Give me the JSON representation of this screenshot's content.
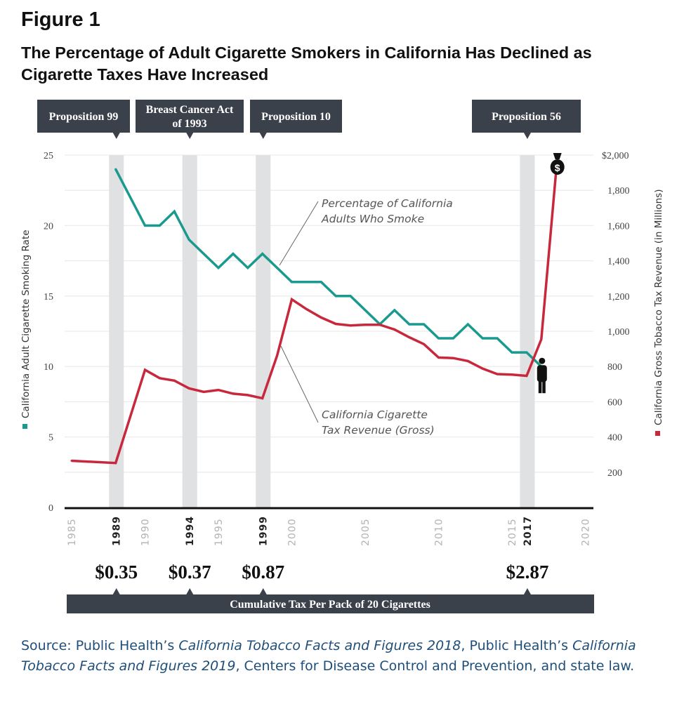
{
  "figure_label": "Figure 1",
  "title": "The Percentage of Adult Cigarette Smokers in California Has Declined as Cigarette Taxes Have Increased",
  "source": {
    "prefix": "Source: Public Health’s ",
    "italic1": "California Tobacco Facts and Figures 2018",
    "middle": ", Public Health’s ",
    "italic2": "California Tobacco Facts and Figures 2019",
    "suffix": ", Centers for Disease Control and Prevention, and state law."
  },
  "colors": {
    "smoking": "#1a9a8e",
    "revenue": "#c8283c",
    "event_band": "#dfe1e3",
    "callout": "#3b414a",
    "source_text": "#1e4e79"
  },
  "chart_data": {
    "type": "line",
    "x_range": [
      1985,
      2020
    ],
    "x_ticks": [
      {
        "label": "1985",
        "year": 1985,
        "emphasis": false
      },
      {
        "label": "1989",
        "year": 1989,
        "emphasis": true
      },
      {
        "label": "1990",
        "year": 1990,
        "emphasis": false
      },
      {
        "label": "1994",
        "year": 1994,
        "emphasis": true
      },
      {
        "label": "1995",
        "year": 1995,
        "emphasis": false
      },
      {
        "label": "1999",
        "year": 1999,
        "emphasis": true
      },
      {
        "label": "2000",
        "year": 2000,
        "emphasis": false
      },
      {
        "label": "2005",
        "year": 2005,
        "emphasis": false
      },
      {
        "label": "2010",
        "year": 2010,
        "emphasis": false
      },
      {
        "label": "2015",
        "year": 2015,
        "emphasis": false
      },
      {
        "label": "2017",
        "year": 2017,
        "emphasis": true
      },
      {
        "label": "2020",
        "year": 2020,
        "emphasis": false
      }
    ],
    "y_left": {
      "label": "California Adult Cigarette Smoking Rate",
      "range": [
        0,
        25
      ],
      "ticks": [
        "0",
        "5",
        "10",
        "15",
        "20",
        "25"
      ]
    },
    "y_right": {
      "label": "California Gross Tobacco Tax Revenue (in Millions)",
      "range": [
        0,
        2000
      ],
      "ticks": [
        "200",
        "400",
        "600",
        "800",
        "1,000",
        "1,200",
        "1,400",
        "1,600",
        "1,800",
        "$2,000"
      ]
    },
    "grid": true,
    "series": [
      {
        "name": "Percentage of California Adults Who Smoke",
        "axis": "left",
        "color": "#1a9a8e",
        "end_icon": "person-icon",
        "x": [
          1988,
          1990,
          1991,
          1992,
          1993,
          1994,
          1995,
          1996,
          1997,
          1998,
          1999,
          2000,
          2001,
          2002,
          2003,
          2004,
          2005,
          2006,
          2007,
          2008,
          2009,
          2010,
          2011,
          2012,
          2013,
          2014,
          2015,
          2016,
          2017
        ],
        "y": [
          24,
          20,
          20,
          21,
          19,
          18,
          17,
          18,
          17,
          18,
          17,
          16,
          16,
          16,
          15,
          15,
          14,
          13,
          14,
          13,
          13,
          12,
          12,
          13,
          12,
          12,
          11,
          11,
          10
        ]
      },
      {
        "name": "California Cigarette Tax Revenue (Gross)",
        "axis": "right",
        "color": "#c8283c",
        "end_icon": "money-bag-icon",
        "x": [
          1985,
          1988,
          1990,
          1991,
          1992,
          1993,
          1994,
          1995,
          1996,
          1997,
          1998,
          1999,
          2000,
          2001,
          2002,
          2003,
          2004,
          2005,
          2006,
          2007,
          2008,
          2009,
          2010,
          2011,
          2012,
          2013,
          2014,
          2015,
          2016,
          2017,
          2018
        ],
        "y": [
          265,
          252,
          781,
          734,
          720,
          676,
          656,
          667,
          646,
          638,
          620,
          862,
          1181,
          1126,
          1078,
          1042,
          1033,
          1037,
          1037,
          1010,
          966,
          927,
          851,
          848,
          831,
          788,
          757,
          754,
          747,
          954,
          1900
        ]
      }
    ],
    "events": [
      {
        "label": "Proposition 99",
        "year": 1989,
        "tax": "$0.35"
      },
      {
        "label": "Breast Cancer Act of 1993",
        "year": 1994,
        "tax": "$0.37"
      },
      {
        "label": "Proposition 10",
        "year": 1999,
        "tax": "$0.87"
      },
      {
        "label": "Proposition 56",
        "year": 2017,
        "tax": "$2.87"
      }
    ],
    "tax_bar_label": "Cumulative Tax Per Pack of 20 Cigarettes",
    "annotations": {
      "smoking": [
        "Percentage of California",
        "Adults Who Smoke"
      ],
      "revenue": [
        "California Cigarette",
        "Tax Revenue (Gross)"
      ]
    }
  }
}
